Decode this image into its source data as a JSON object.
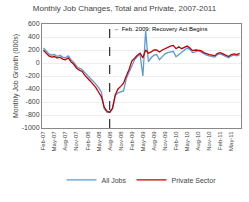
{
  "chart_data": {
    "type": "line",
    "title": "Monthly Job Changes, Total and Private, 2007-2011",
    "ylabel": "Monthly Job Growth (000s)",
    "categories": [
      "Feb-07",
      null,
      null,
      null,
      "May-07",
      null,
      null,
      null,
      "Aug-07",
      null,
      null,
      null,
      "Nov-07",
      null,
      null,
      null,
      "Feb-08",
      null,
      null,
      null,
      "May-08",
      null,
      null,
      null,
      "Aug-08",
      null,
      null,
      null,
      "Nov-08",
      null,
      null,
      null,
      "Feb-09",
      null,
      null,
      null,
      "May-09",
      null,
      null,
      null,
      "Aug-09",
      null,
      null,
      null,
      "Nov-09",
      null,
      null,
      null,
      "Feb-10",
      null,
      null,
      null,
      "May-10",
      null,
      null,
      null,
      "Aug-10",
      null,
      null,
      null,
      "Nov-10",
      null,
      null,
      null,
      "Feb-11",
      null,
      null,
      null,
      "May-11",
      null,
      null,
      null
    ],
    "series": [
      {
        "name": "All Jobs",
        "color": "#5B9BD5",
        "values": [
          230,
          180,
          140,
          120,
          130,
          100,
          120,
          90,
          80,
          110,
          50,
          10,
          -50,
          -80,
          -100,
          -150,
          -190,
          -240,
          -280,
          -330,
          -380,
          -450,
          -700,
          -760,
          -760,
          -700,
          -500,
          -460,
          -440,
          -430,
          -240,
          -150,
          -50,
          50,
          100,
          130,
          -200,
          490,
          20,
          80,
          120,
          130,
          50,
          90,
          140,
          160,
          170,
          180,
          95,
          130,
          170,
          200,
          230,
          210,
          160,
          170,
          190,
          170,
          140,
          120,
          110,
          100,
          90,
          130,
          140,
          120,
          100,
          80,
          110,
          120,
          110,
          130
        ]
      },
      {
        "name": "Private Sector",
        "color": "#C00000",
        "values": [
          195,
          155,
          110,
          90,
          100,
          75,
          90,
          60,
          50,
          80,
          20,
          -20,
          -80,
          -110,
          -130,
          -190,
          -230,
          -280,
          -330,
          -380,
          -450,
          -520,
          -680,
          -740,
          -760,
          -700,
          -490,
          -400,
          -360,
          -310,
          -200,
          -100,
          30,
          80,
          120,
          150,
          80,
          200,
          150,
          170,
          200,
          200,
          170,
          200,
          220,
          250,
          260,
          270,
          220,
          250,
          220,
          240,
          260,
          230,
          190,
          200,
          200,
          190,
          160,
          140,
          130,
          120,
          110,
          150,
          160,
          140,
          120,
          100,
          130,
          140,
          130,
          150
        ]
      }
    ],
    "annotations": [
      {
        "text": "← Feb. 2009: Recovery Act Begins",
        "x": 24,
        "y": 530
      }
    ],
    "ylim": [
      -1000,
      600
    ],
    "yticks": [
      -1000,
      -800,
      -600,
      -400,
      -200,
      0,
      200,
      400,
      600
    ],
    "grid": true,
    "legend": "bottom"
  }
}
